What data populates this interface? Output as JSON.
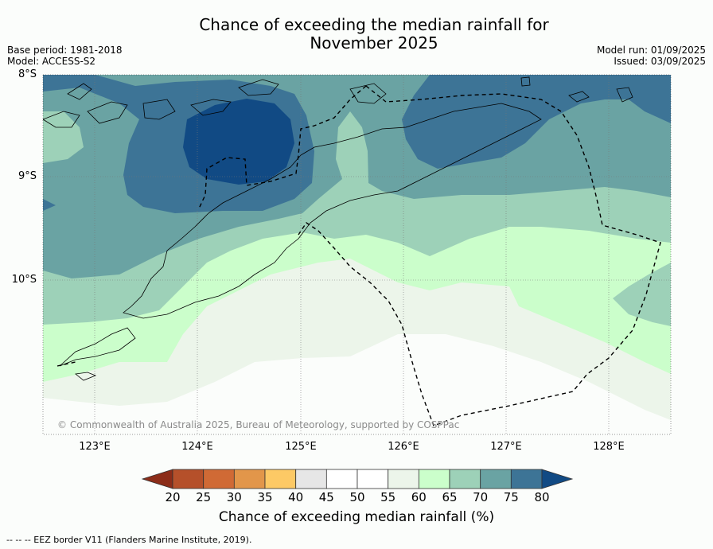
{
  "title": {
    "line1": "Chance of exceeding the median rainfall for",
    "line2": "November 2025"
  },
  "meta": {
    "base_period": "Base period: 1981-2018",
    "model": "Model: ACCESS-S2",
    "model_run": "Model run: 01/09/2025",
    "issued": "Issued: 03/09/2025"
  },
  "axes": {
    "lat_labels": [
      "8°S",
      "9°S",
      "10°S"
    ],
    "lon_labels": [
      "123°E",
      "124°E",
      "125°E",
      "126°E",
      "127°E",
      "128°E"
    ]
  },
  "copyright": "© Commonwealth of Australia 2025, Bureau of Meteorology, supported by COSPPac",
  "colorbar": {
    "label": "Chance of exceeding median rainfall (%)",
    "ticks": [
      "20",
      "25",
      "30",
      "35",
      "40",
      "45",
      "50",
      "55",
      "60",
      "65",
      "70",
      "75",
      "80"
    ],
    "colors": {
      "below20": "#8c2d19",
      "b20_25": "#b5502a",
      "b25_30": "#d06a35",
      "b30_35": "#e2964a",
      "b35_40": "#fdc965",
      "b40_45": "#e6e6e6",
      "b45_50": "#ffffff",
      "b50_55": "#ffffff",
      "b55_60": "#ecf5ea",
      "b60_65": "#cbfecb",
      "b65_70": "#9dd1b8",
      "b70_75": "#6aa3a3",
      "b75_80": "#3d7496",
      "above80": "#114a84"
    }
  },
  "footer": {
    "eez_note": "-- -- -- EEZ border V11 (Flanders Marine Institute, 2019)."
  }
}
